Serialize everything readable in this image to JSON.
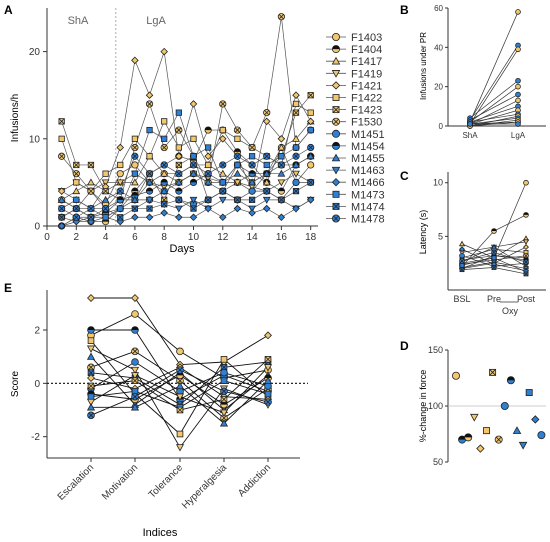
{
  "colors": {
    "female": "#F2C76E",
    "male": "#2F7FD3",
    "axis": "#333333",
    "line": "#333333"
  },
  "panels": {
    "A": "A",
    "B": "B",
    "C": "C",
    "D": "D",
    "E": "E"
  },
  "chart_data": [
    {
      "panel": "A",
      "type": "line",
      "xlabel": "Days",
      "ylabel": "Infusions/h",
      "xlim": [
        0,
        18.5
      ],
      "ylim": [
        0,
        25
      ],
      "xticks": [
        "0",
        "2",
        "4",
        "6",
        "8",
        "10",
        "12",
        "14",
        "16",
        "18"
      ],
      "yticks": [
        "0",
        "10",
        "20"
      ],
      "phase_labels": [
        "ShA",
        "LgA"
      ],
      "phase_boundary_day": 4.7,
      "x": [
        1,
        2,
        3,
        4,
        5,
        6,
        7,
        8,
        9,
        10,
        11,
        12,
        13,
        14,
        15,
        16,
        17,
        18
      ],
      "series": [
        {
          "name": "F1403",
          "sex": "F",
          "marker": "circle",
          "values": [
            3,
            2,
            4,
            2.5,
            6,
            7,
            5,
            6,
            5,
            6,
            5,
            4,
            5,
            4,
            6,
            9,
            5,
            7
          ]
        },
        {
          "name": "F1404",
          "sex": "F",
          "marker": "half",
          "values": [
            0,
            1,
            0.5,
            0.5,
            2,
            4,
            6,
            7,
            8,
            7.5,
            11,
            11,
            8.5,
            7,
            5,
            4,
            7,
            8
          ]
        },
        {
          "name": "F1417",
          "sex": "F",
          "marker": "triangle",
          "values": [
            3,
            4,
            5,
            4,
            5,
            5,
            8,
            6,
            6,
            7,
            7,
            6,
            5,
            6,
            5,
            9,
            10,
            12
          ]
        },
        {
          "name": "F1419",
          "sex": "F",
          "marker": "tridown",
          "values": [
            4,
            5,
            4,
            5,
            5,
            6,
            5,
            4.5,
            5,
            6,
            5.5,
            5,
            5,
            4.5,
            4,
            5,
            6,
            5
          ]
        },
        {
          "name": "F1421",
          "sex": "F",
          "marker": "diamond",
          "values": [
            4,
            3,
            2,
            4.5,
            9,
            19,
            15,
            20,
            8,
            14,
            8,
            10,
            8,
            4,
            12,
            10,
            15,
            12
          ]
        },
        {
          "name": "F1422",
          "sex": "F",
          "marker": "square",
          "values": [
            10,
            5,
            4,
            6,
            7,
            10,
            8,
            12,
            9,
            10,
            7,
            11,
            10,
            9,
            8,
            7,
            14,
            13
          ]
        },
        {
          "name": "F1423",
          "sex": "F",
          "marker": "xbox",
          "values": [
            12,
            7,
            7,
            4,
            3,
            3,
            6,
            3,
            7,
            8,
            3,
            4,
            7,
            5,
            6,
            8,
            13,
            15
          ]
        },
        {
          "name": "F1530",
          "sex": "F",
          "marker": "xcircle",
          "values": [
            8,
            6,
            4,
            2,
            3,
            9,
            14,
            9,
            11,
            8,
            5,
            14,
            11,
            9,
            13,
            24,
            9,
            11
          ]
        },
        {
          "name": "M1451",
          "sex": "M",
          "marker": "circle",
          "values": [
            1,
            2,
            1,
            1.5,
            2,
            3,
            3,
            4,
            3,
            2.5,
            3,
            4,
            3,
            4,
            4,
            3,
            5,
            5
          ]
        },
        {
          "name": "M1454",
          "sex": "M",
          "marker": "half",
          "values": [
            0,
            1,
            1,
            1.5,
            3,
            3.5,
            4,
            5,
            4,
            5,
            6,
            5,
            7,
            6,
            6,
            7,
            7,
            8
          ]
        },
        {
          "name": "M1455",
          "sex": "M",
          "marker": "triangle",
          "values": [
            3,
            2,
            2,
            3,
            4,
            3,
            5,
            4,
            5,
            6,
            5,
            5,
            6,
            5,
            6,
            6,
            7,
            8
          ]
        },
        {
          "name": "M1463",
          "sex": "M",
          "marker": "tridown",
          "values": [
            1,
            0.5,
            1,
            1,
            2,
            2,
            3,
            2.5,
            2,
            3,
            2,
            3,
            3,
            2,
            3,
            3,
            2,
            3
          ]
        },
        {
          "name": "M1466",
          "sex": "M",
          "marker": "diamond",
          "values": [
            0,
            0.5,
            0.5,
            1,
            0.5,
            1,
            1,
            1.5,
            1,
            1,
            2,
            1,
            2,
            1.5,
            2,
            1,
            2,
            3
          ]
        },
        {
          "name": "M1473",
          "sex": "M",
          "marker": "square",
          "values": [
            2,
            3,
            2,
            1,
            2,
            6,
            11,
            10,
            13,
            8,
            9,
            5,
            7,
            8,
            7,
            8,
            9,
            11
          ]
        },
        {
          "name": "M1474",
          "sex": "M",
          "marker": "xbox",
          "values": [
            1,
            2,
            1,
            2,
            1,
            2,
            2,
            2.5,
            3,
            2,
            3,
            4,
            3,
            3,
            4,
            3,
            4,
            5
          ]
        },
        {
          "name": "M1478",
          "sex": "M",
          "marker": "xcircle",
          "values": [
            2,
            1,
            2,
            2,
            4,
            8,
            6,
            7,
            6,
            7,
            6,
            7,
            8,
            7,
            8,
            7,
            8,
            9
          ]
        }
      ]
    },
    {
      "panel": "B",
      "type": "line",
      "ylabel": "Infusions under PR",
      "categories": [
        "ShA",
        "LgA"
      ],
      "ylim": [
        0,
        60
      ],
      "yticks": [
        "0",
        "20",
        "40",
        "60"
      ],
      "pairs": [
        [
          2,
          58
        ],
        [
          3,
          41
        ],
        [
          1,
          39
        ],
        [
          4,
          23
        ],
        [
          2,
          20
        ],
        [
          3,
          16
        ],
        [
          1,
          13
        ],
        [
          2,
          10
        ],
        [
          1,
          8
        ],
        [
          2,
          6
        ],
        [
          0,
          5
        ],
        [
          1,
          4
        ],
        [
          0,
          3
        ],
        [
          1,
          2
        ],
        [
          0,
          2
        ],
        [
          1,
          1
        ]
      ]
    },
    {
      "panel": "C",
      "type": "line",
      "ylabel": "Latency (s)",
      "categories": [
        "BSL",
        "Pre",
        "Post"
      ],
      "group_label": "Oxy",
      "ylim": [
        0,
        11
      ],
      "yticks": [
        "5",
        "10"
      ],
      "triples": [
        [
          2.5,
          3,
          10
        ],
        [
          2.2,
          5.5,
          7
        ],
        [
          4.3,
          3,
          4.8
        ],
        [
          3.5,
          4,
          4.5
        ],
        [
          2,
          2.5,
          4
        ],
        [
          3,
          3.8,
          3.5
        ],
        [
          2.8,
          3.2,
          3
        ],
        [
          2.4,
          2.8,
          3.2
        ],
        [
          3.2,
          2.2,
          2.5
        ],
        [
          2,
          3.2,
          2.8
        ],
        [
          2.6,
          4,
          2.2
        ],
        [
          2.1,
          2.6,
          2
        ],
        [
          3.8,
          2.4,
          1.8
        ],
        [
          2.3,
          3,
          1.7
        ],
        [
          1.9,
          2.1,
          1.5
        ],
        [
          2.7,
          3.5,
          2.6
        ]
      ]
    },
    {
      "panel": "D",
      "type": "scatter",
      "ylabel": "%-change in force",
      "ylim": [
        50,
        150
      ],
      "yticks": [
        "50",
        "100",
        "150"
      ],
      "reference_line": 100,
      "points": [
        {
          "marker": "circle",
          "sex": "F",
          "value": 127
        },
        {
          "marker": "half",
          "sex": "M",
          "value": 70
        },
        {
          "marker": "half",
          "sex": "F",
          "value": 72
        },
        {
          "marker": "tridown",
          "sex": "F",
          "value": 90
        },
        {
          "marker": "diamond",
          "sex": "F",
          "value": 62
        },
        {
          "marker": "square",
          "sex": "F",
          "value": 78
        },
        {
          "marker": "xbox",
          "sex": "F",
          "value": 130
        },
        {
          "marker": "xcircle",
          "sex": "F",
          "value": 70
        },
        {
          "marker": "circle",
          "sex": "M",
          "value": 100
        },
        {
          "marker": "half",
          "sex": "M",
          "value": 123
        },
        {
          "marker": "triangle",
          "sex": "M",
          "value": 78
        },
        {
          "marker": "tridown",
          "sex": "M",
          "value": 65
        },
        {
          "marker": "square",
          "sex": "M",
          "value": 112
        },
        {
          "marker": "diamond",
          "sex": "M",
          "value": 88
        },
        {
          "marker": "circle",
          "sex": "M",
          "value": 74
        }
      ]
    },
    {
      "panel": "E",
      "type": "line",
      "xlabel": "Indices",
      "ylabel": "Score",
      "categories": [
        "Escalation",
        "Motivation",
        "Tolerance",
        "Hyperalgesia",
        "Addiction"
      ],
      "ylim": [
        -2.8,
        3.5
      ],
      "yticks": [
        "2",
        "0",
        "-2"
      ],
      "reference_line": 0,
      "rows": [
        {
          "sex": "F",
          "values": [
            3.2,
            3.2,
            0.7,
            0.8,
            1.8
          ]
        },
        {
          "sex": "F",
          "values": [
            1.8,
            2.6,
            1.2,
            0.2,
            0.5
          ]
        },
        {
          "sex": "M",
          "values": [
            2.0,
            2.0,
            -0.6,
            0.3,
            -0.3
          ]
        },
        {
          "sex": "F",
          "values": [
            1.6,
            -0.4,
            -1.9,
            0.9,
            -0.5
          ]
        },
        {
          "sex": "F",
          "values": [
            1.3,
            0.5,
            -2.4,
            -0.2,
            -0.8
          ]
        },
        {
          "sex": "M",
          "values": [
            1.0,
            -0.8,
            0.4,
            -1.0,
            0.3
          ]
        },
        {
          "sex": "F",
          "values": [
            0.6,
            1.2,
            0.1,
            -1.3,
            -0.2
          ]
        },
        {
          "sex": "M",
          "values": [
            0.4,
            0.2,
            -0.8,
            0.6,
            0.8
          ]
        },
        {
          "sex": "F",
          "values": [
            0.2,
            -0.2,
            0.6,
            -0.5,
            -0.6
          ]
        },
        {
          "sex": "M",
          "values": [
            -0.2,
            0.8,
            -0.3,
            0.4,
            -0.1
          ]
        },
        {
          "sex": "F",
          "values": [
            -0.4,
            -0.6,
            0.3,
            -0.8,
            0.2
          ]
        },
        {
          "sex": "M",
          "values": [
            -0.5,
            -0.3,
            -0.9,
            0.1,
            -0.4
          ]
        },
        {
          "sex": "F",
          "values": [
            -0.7,
            0.3,
            -0.5,
            -1.1,
            0.6
          ]
        },
        {
          "sex": "M",
          "values": [
            -0.9,
            -0.9,
            -0.1,
            -1.5,
            0.1
          ]
        },
        {
          "sex": "M",
          "values": [
            -1.2,
            -0.5,
            0.5,
            -0.3,
            -0.7
          ]
        },
        {
          "sex": "F",
          "values": [
            -0.1,
            0.1,
            -1.0,
            -0.6,
            0.9
          ]
        }
      ]
    }
  ]
}
